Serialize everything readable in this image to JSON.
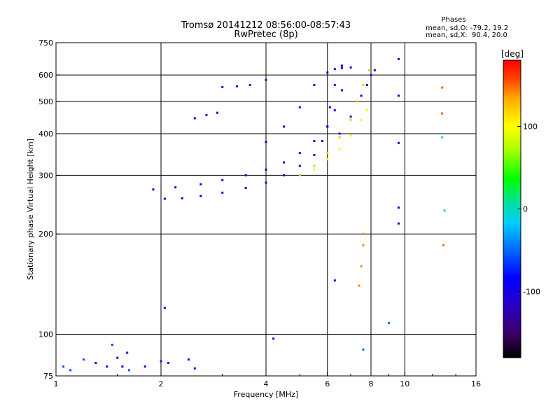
{
  "header": {
    "title": "Tromsø 20141212 08:56:00-08:57:43",
    "subtitle": "RwPretec (8p)"
  },
  "stats": {
    "heading": "Phases",
    "line_o": "mean, sd,O: -79.2, 19.2",
    "line_x": "mean, sd,X:  90.4, 20.0"
  },
  "colorbar": {
    "unit_label": "[deg]",
    "ticks": [
      {
        "value": 100,
        "label": "100"
      },
      {
        "value": 0,
        "label": "0"
      },
      {
        "value": -100,
        "label": "-100"
      }
    ],
    "range": [
      -180,
      180
    ]
  },
  "chart_data": {
    "type": "scatter",
    "title": "Tromsø 20141212 08:56:00-08:57:43",
    "subtitle": "RwPretec (8p)",
    "xlabel": "Frequency [MHz]",
    "ylabel": "Stationary phase Virtual Height [km]",
    "x_scale": "log",
    "y_scale": "log",
    "xlim": [
      1,
      16
    ],
    "ylim": [
      75,
      750
    ],
    "x_ticks": [
      1,
      2,
      4,
      6,
      8,
      10,
      16
    ],
    "x_tick_labels": [
      "1",
      "2",
      "4",
      "6",
      "8",
      "10",
      "16"
    ],
    "y_ticks": [
      75,
      100,
      200,
      300,
      400,
      500,
      600,
      750
    ],
    "y_tick_labels": [
      "75",
      "100",
      "200",
      "300",
      "400",
      "500",
      "600",
      "750"
    ],
    "grid": true,
    "x_grid": [
      2,
      4,
      6,
      8,
      10
    ],
    "y_grid": [
      100,
      200,
      300,
      400,
      500,
      600
    ],
    "color_axis": "phase [deg]",
    "series": [
      {
        "phase_deg": -100,
        "x": [
          2.05,
          2.3,
          2.6,
          3.0,
          3.5,
          4.0,
          4.5,
          5.0,
          5.5,
          5.8,
          6.0,
          6.1,
          6.3,
          6.6
        ],
        "y": [
          255,
          256,
          260,
          266,
          275,
          285,
          300,
          320,
          345,
          380,
          420,
          480,
          560,
          640
        ]
      },
      {
        "phase_deg": -90,
        "x": [
          1.9,
          2.2,
          2.6,
          3.0,
          3.5,
          4.0,
          4.5,
          5.0,
          5.5,
          6.0,
          6.3,
          6.6
        ],
        "y": [
          272,
          276,
          282,
          290,
          300,
          312,
          328,
          350,
          380,
          420,
          470,
          540
        ]
      },
      {
        "phase_deg": -95,
        "x": [
          4.0,
          4.5,
          5.0,
          5.5,
          6.0,
          6.3,
          6.6,
          7.0
        ],
        "y": [
          378,
          420,
          480,
          560,
          610,
          625,
          630,
          632
        ]
      },
      {
        "phase_deg": -80,
        "x": [
          3.0,
          3.3,
          3.6,
          4.0
        ],
        "y": [
          552,
          555,
          560,
          580
        ]
      },
      {
        "phase_deg": -85,
        "x": [
          2.5,
          2.7,
          2.9
        ],
        "y": [
          445,
          455,
          462
        ]
      },
      {
        "phase_deg": 120,
        "x": [
          5.0,
          5.5,
          6.0,
          6.5,
          7.0,
          7.3,
          7.6,
          7.9
        ],
        "y": [
          300,
          320,
          350,
          390,
          440,
          500,
          560,
          620
        ]
      },
      {
        "phase_deg": 100,
        "x": [
          5.5,
          6.0,
          6.5,
          7.0,
          7.5,
          7.8
        ],
        "y": [
          312,
          335,
          360,
          395,
          440,
          470
        ]
      },
      {
        "phase_deg": -110,
        "x": [
          6.5,
          7.0,
          7.5,
          7.8,
          8.0,
          8.2
        ],
        "y": [
          400,
          450,
          520,
          560,
          600,
          620
        ]
      },
      {
        "phase_deg": -100,
        "x": [
          9.6,
          9.6,
          9.6,
          9.6,
          9.6
        ],
        "y": [
          670,
          520,
          375,
          240,
          215
        ]
      },
      {
        "phase_deg": 140,
        "x": [
          7.6,
          7.6,
          7.5,
          7.4
        ],
        "y": [
          200,
          185,
          160,
          140
        ]
      },
      {
        "phase_deg": 150,
        "x": [
          12.8,
          12.8,
          12.9
        ],
        "y": [
          550,
          460,
          185
        ]
      },
      {
        "phase_deg": 20,
        "x": [
          12.8,
          13.0
        ],
        "y": [
          390,
          235
        ]
      },
      {
        "phase_deg": -105,
        "x": [
          1.3,
          1.4,
          1.5,
          1.55,
          1.6,
          1.8,
          2.0,
          2.1,
          2.4,
          2.5
        ],
        "y": [
          82,
          80,
          85,
          80,
          88,
          80,
          83,
          82,
          84,
          79
        ]
      },
      {
        "phase_deg": -60,
        "x": [
          1.05,
          1.1,
          1.2,
          1.45,
          1.62
        ],
        "y": [
          80,
          78,
          84,
          93,
          78
        ]
      },
      {
        "phase_deg": -100,
        "x": [
          2.05,
          4.2,
          6.3
        ],
        "y": [
          120,
          97,
          145
        ]
      },
      {
        "phase_deg": -50,
        "x": [
          7.6,
          9.0
        ],
        "y": [
          90,
          108
        ]
      }
    ]
  }
}
